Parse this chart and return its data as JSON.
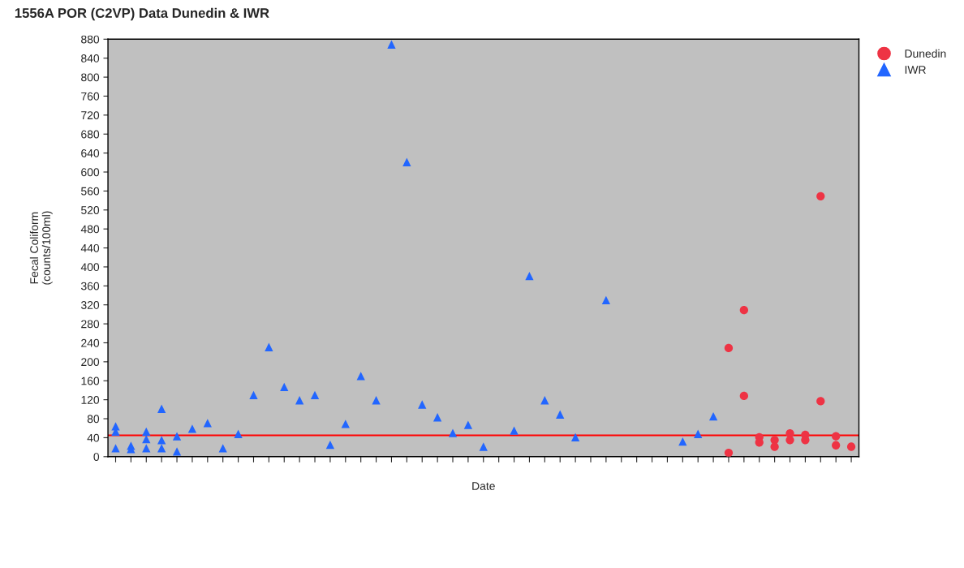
{
  "chart_data": {
    "type": "scatter",
    "title": "1556A POR (C2VP) Data Dunedin & IWR",
    "xlabel": "Date",
    "ylabel": "Fecal Coliform\n(counts/100ml)",
    "categories": [
      null,
      null,
      null,
      null,
      null,
      null,
      null,
      null,
      null,
      null,
      null,
      null,
      null,
      null,
      null,
      null,
      null,
      null,
      null,
      null,
      null,
      null,
      null,
      null,
      null,
      null,
      null,
      null,
      null,
      null,
      null,
      null,
      null,
      null,
      null,
      null,
      null,
      null,
      null,
      null,
      null,
      null,
      null,
      null,
      null,
      null,
      null,
      null,
      null
    ],
    "ylim": [
      0,
      880
    ],
    "yticks": [
      0,
      40,
      80,
      120,
      160,
      200,
      240,
      280,
      320,
      360,
      400,
      440,
      480,
      520,
      560,
      600,
      640,
      680,
      720,
      760,
      800,
      840,
      880
    ],
    "tick_labels": "y",
    "legend": "top right",
    "ref_lines": [
      {
        "axis": "y",
        "value": 45,
        "color": "#ff0000"
      }
    ],
    "series": [
      {
        "name": "Dunedin",
        "color": "#ee3344",
        "marker": "circle",
        "values": [
          null,
          null,
          null,
          null,
          null,
          null,
          null,
          null,
          null,
          null,
          null,
          null,
          null,
          null,
          null,
          null,
          null,
          null,
          null,
          null,
          null,
          null,
          null,
          null,
          null,
          null,
          null,
          null,
          null,
          null,
          null,
          null,
          null,
          null,
          null,
          null,
          null,
          null,
          null,
          null,
          229,
          309,
          41,
          35,
          49,
          46,
          549,
          43,
          21
        ]
      },
      {
        "name": "IWR",
        "color": "#2266ff",
        "marker": "triangle",
        "values": [
          64,
          23,
          53,
          101,
          43,
          59,
          71,
          18,
          48,
          130,
          231,
          147,
          119,
          130,
          25,
          69,
          170,
          119,
          869,
          621,
          110,
          83,
          50,
          67,
          21,
          null,
          55,
          381,
          119,
          89,
          41,
          null,
          330,
          null,
          null,
          null,
          null,
          32,
          48,
          85,
          null,
          null,
          null,
          null,
          null,
          null,
          null,
          null,
          null
        ]
      },
      {
        "color": "#ee3344",
        "marker": "circle",
        "values": [
          null,
          null,
          null,
          null,
          null,
          null,
          null,
          null,
          null,
          null,
          null,
          null,
          null,
          null,
          null,
          null,
          null,
          null,
          null,
          null,
          null,
          null,
          null,
          null,
          null,
          null,
          null,
          null,
          null,
          null,
          null,
          null,
          null,
          null,
          null,
          null,
          null,
          null,
          null,
          null,
          8,
          128,
          30,
          21,
          35,
          35,
          117,
          24,
          null
        ]
      },
      {
        "color": "#2266ff",
        "marker": "triangle",
        "values": [
          53,
          16,
          37,
          35,
          11,
          null,
          null,
          null,
          null,
          null,
          null,
          null,
          null,
          null,
          null,
          null,
          null,
          null,
          null,
          null,
          null,
          null,
          null,
          null,
          null,
          null,
          null,
          null,
          null,
          null,
          null,
          null,
          null,
          null,
          null,
          null,
          null,
          null,
          null,
          null,
          null,
          null,
          null,
          null,
          null,
          null,
          null,
          null,
          null
        ]
      },
      {
        "color": "#2266ff",
        "marker": "triangle",
        "values": [
          18,
          null,
          18,
          18,
          null,
          null,
          null,
          null,
          null,
          null,
          null,
          null,
          null,
          null,
          null,
          null,
          null,
          null,
          null,
          null,
          null,
          null,
          null,
          null,
          null,
          null,
          null,
          null,
          null,
          null,
          null,
          null,
          null,
          null,
          null,
          null,
          null,
          null,
          null,
          null,
          null,
          null,
          null,
          null,
          null,
          null,
          null,
          null,
          null
        ]
      }
    ]
  }
}
